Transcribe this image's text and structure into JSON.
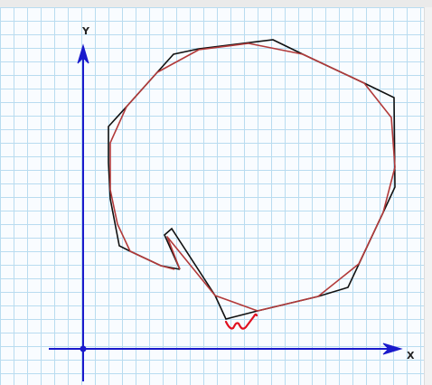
{
  "axes": {
    "x_label": "X",
    "y_label": "Y"
  },
  "colors": {
    "axis": "#1a1acc",
    "shape_outline": "#111111",
    "shape_smooth": "#b23a3a",
    "annotation": "#e01020",
    "grid": "#b9dcf0"
  },
  "icons": {
    "axis_arrow": "arrow-head-icon",
    "origin": "origin-dot-icon",
    "annotation": "handwritten-mark-icon"
  }
}
